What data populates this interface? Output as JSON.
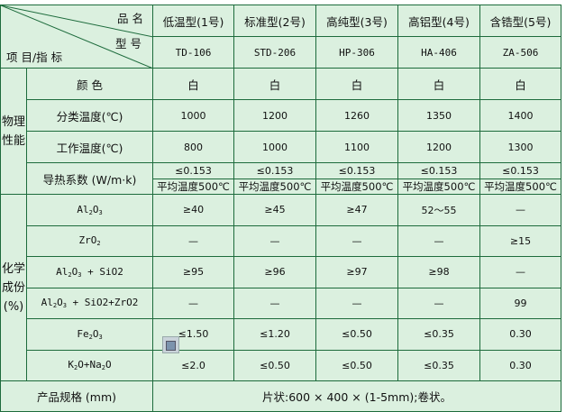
{
  "header": {
    "corner_product_name": "品  名",
    "corner_model": "型  号",
    "corner_item": "项  目/指  标",
    "products": [
      {
        "name": "低温型(1号)",
        "model": "TD-106"
      },
      {
        "name": "标准型(2号)",
        "model": "STD-206"
      },
      {
        "name": "高纯型(3号)",
        "model": "HP-306"
      },
      {
        "name": "高铝型(4号)",
        "model": "HA-406"
      },
      {
        "name": "含锆型(5号)",
        "model": "ZA-506"
      }
    ]
  },
  "physical": {
    "group_label": "物理性能",
    "rows": [
      {
        "label": "颜  色",
        "values": [
          "白",
          "白",
          "白",
          "白",
          "白"
        ]
      },
      {
        "label": "分类温度(℃)",
        "values": [
          "1000",
          "1200",
          "1260",
          "1350",
          "1400"
        ]
      },
      {
        "label": "工作温度(℃)",
        "values": [
          "800",
          "1000",
          "1100",
          "1200",
          "1300"
        ]
      }
    ],
    "thermal": {
      "label": "导热系数 (W/m·k)",
      "values": [
        "≤0.153",
        "≤0.153",
        "≤0.153",
        "≤0.153",
        "≤0.153"
      ],
      "conditions": [
        "平均温度500℃",
        "平均温度500℃",
        "平均温度500℃",
        "平均温度500℃",
        "平均温度500℃"
      ]
    }
  },
  "chemical": {
    "group_label": "化学成份(%)",
    "rows": [
      {
        "label_parts": [
          "Al",
          "2",
          "O",
          "3",
          ""
        ],
        "values": [
          "≥40",
          "≥45",
          "≥47",
          "52～55",
          "—"
        ]
      },
      {
        "label_parts": [
          "ZrO",
          "2",
          "",
          "",
          ""
        ],
        "values": [
          "—",
          "—",
          "—",
          "—",
          "≥15"
        ]
      },
      {
        "label_parts": [
          "Al",
          "2",
          "O",
          "3",
          " + SiO2"
        ],
        "values": [
          "≥95",
          "≥96",
          "≥97",
          "≥98",
          "—"
        ]
      },
      {
        "label_parts": [
          "Al",
          "2",
          "O",
          "3",
          " + SiO2+ZrO2"
        ],
        "values": [
          "—",
          "—",
          "—",
          "—",
          "99"
        ]
      },
      {
        "label_parts": [
          "Fe",
          "2",
          "O",
          "3",
          ""
        ],
        "values": [
          "≤1.50",
          "≤1.20",
          "≤0.50",
          "≤0.35",
          "0.30"
        ]
      },
      {
        "label_parts": [
          "K",
          "2",
          "O+Na",
          "2",
          "O"
        ],
        "values": [
          "≤2.0",
          "≤0.50",
          "≤0.50",
          "≤0.35",
          "0.30"
        ]
      }
    ]
  },
  "spec": {
    "label": "产品规格 (mm)",
    "value": "片状:600 × 400 × (1-5mm);卷状。"
  },
  "colors": {
    "background": "#dbf0df",
    "grid": "#1d6b3c"
  }
}
